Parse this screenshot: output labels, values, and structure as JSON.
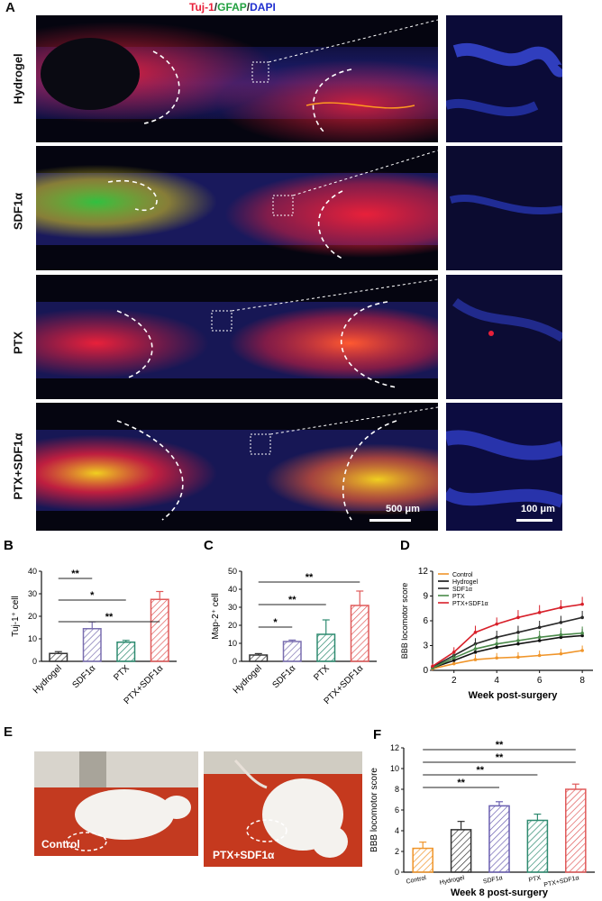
{
  "figure": {
    "panel_a": {
      "letter": "A",
      "stain_parts": [
        {
          "text": "Tuj-1",
          "color": "#e8203a"
        },
        {
          "text": "/",
          "color": "#222222"
        },
        {
          "text": "GFAP",
          "color": "#22a040"
        },
        {
          "text": "/",
          "color": "#222222"
        },
        {
          "text": "DAPI",
          "color": "#2030d0"
        }
      ],
      "rows": [
        "Hydrogel",
        "SDF1α",
        "PTX",
        "PTX+SDF1α"
      ],
      "scale_main": "500 μm",
      "scale_zoom": "100 μm"
    },
    "panel_e": {
      "letter": "E",
      "photo_left_label": "Control",
      "photo_right_label": "PTX+SDF1α"
    }
  },
  "chart_data": [
    {
      "id": "B",
      "type": "bar",
      "letter": "B",
      "ylabel": "Tuj-1⁺ cell",
      "ylim": [
        0,
        40
      ],
      "yticks": [
        0,
        10,
        20,
        30,
        40
      ],
      "categories": [
        "Hydrogel",
        "SDF1α",
        "PTX",
        "PTX+SDF1α"
      ],
      "values": [
        3.5,
        14.5,
        8.5,
        27.5
      ],
      "errors": [
        0.8,
        3.0,
        0.8,
        3.5
      ],
      "colors": [
        "#333333",
        "#7a6fb0",
        "#2e8b70",
        "#e05a5a"
      ],
      "significance": [
        {
          "from": 0,
          "to": 1,
          "label": "**"
        },
        {
          "from": 0,
          "to": 2,
          "label": "*"
        },
        {
          "from": 0,
          "to": 3,
          "label": "**"
        }
      ]
    },
    {
      "id": "C",
      "type": "bar",
      "letter": "C",
      "ylabel": "Map-2⁺ cell",
      "ylim": [
        0,
        50
      ],
      "yticks": [
        0,
        10,
        20,
        30,
        40,
        50
      ],
      "categories": [
        "Hydrogel",
        "SDF1α",
        "PTX",
        "PTX+SDF1α"
      ],
      "values": [
        3.5,
        11,
        15,
        31
      ],
      "errors": [
        0.8,
        0.8,
        8,
        8
      ],
      "colors": [
        "#333333",
        "#7a6fb0",
        "#2e8b70",
        "#e05a5a"
      ],
      "significance": [
        {
          "from": 0,
          "to": 1,
          "label": "*"
        },
        {
          "from": 0,
          "to": 2,
          "label": "**"
        },
        {
          "from": 0,
          "to": 3,
          "label": "**"
        }
      ]
    },
    {
      "id": "D",
      "type": "line",
      "letter": "D",
      "ylabel": "BBB locomotor score",
      "xlabel": "Week post-surgery",
      "xlim": [
        1,
        8.5
      ],
      "ylim": [
        0,
        12
      ],
      "xticks": [
        2,
        4,
        6,
        8
      ],
      "yticks": [
        0,
        3,
        6,
        9,
        12
      ],
      "x": [
        1,
        2,
        3,
        4,
        5,
        6,
        7,
        8
      ],
      "series": [
        {
          "name": "Control",
          "color": "#f0952a",
          "values": [
            0.2,
            0.8,
            1.3,
            1.5,
            1.6,
            1.8,
            2.0,
            2.4
          ],
          "errors": [
            0.2,
            0.4,
            0.6,
            0.6,
            0.6,
            0.6,
            0.6,
            0.6
          ]
        },
        {
          "name": "Hydrogel",
          "color": "#111111",
          "values": [
            0.3,
            1.2,
            2.2,
            2.8,
            3.2,
            3.6,
            4.0,
            4.2
          ],
          "errors": [
            0.3,
            0.5,
            0.6,
            0.6,
            0.7,
            0.7,
            0.8,
            0.8
          ]
        },
        {
          "name": "SDF1α",
          "color": "#2a2a2a",
          "values": [
            0.4,
            1.8,
            3.2,
            4.0,
            4.6,
            5.2,
            5.8,
            6.4
          ],
          "errors": [
            0.3,
            0.6,
            0.7,
            0.8,
            0.8,
            0.8,
            0.8,
            0.8
          ]
        },
        {
          "name": "PTX",
          "color": "#4a8a4a",
          "values": [
            0.3,
            1.5,
            2.6,
            3.2,
            3.6,
            4.0,
            4.3,
            4.5
          ],
          "errors": [
            0.3,
            0.5,
            0.6,
            0.7,
            0.7,
            0.8,
            0.8,
            0.8
          ]
        },
        {
          "name": "PTX+SDF1α",
          "color": "#d8202a",
          "values": [
            0.5,
            2.2,
            4.6,
            5.6,
            6.4,
            7.0,
            7.6,
            8.0
          ],
          "errors": [
            0.3,
            0.6,
            0.8,
            0.8,
            0.9,
            0.9,
            0.9,
            0.9
          ]
        }
      ]
    },
    {
      "id": "F",
      "type": "bar",
      "letter": "F",
      "ylabel": "BBB locomotor score",
      "xlabel": "Week 8 post-surgery",
      "ylim": [
        0,
        12
      ],
      "yticks": [
        0,
        2,
        4,
        6,
        8,
        10,
        12
      ],
      "categories": [
        "Control",
        "Hydrogel",
        "SDF1α",
        "PTX",
        "PTX+SDF1α"
      ],
      "values": [
        2.3,
        4.1,
        6.4,
        5.0,
        8.0
      ],
      "errors": [
        0.6,
        0.8,
        0.4,
        0.6,
        0.5
      ],
      "colors": [
        "#f0952a",
        "#333333",
        "#6a5fb0",
        "#2e8b70",
        "#e05a5a"
      ],
      "significance": [
        {
          "from": 0,
          "to": 2,
          "label": "**"
        },
        {
          "from": 0,
          "to": 3,
          "label": "**"
        },
        {
          "from": 0,
          "to": 4,
          "label": "**"
        },
        {
          "from": 0,
          "to": 4,
          "label": "**"
        }
      ]
    }
  ]
}
